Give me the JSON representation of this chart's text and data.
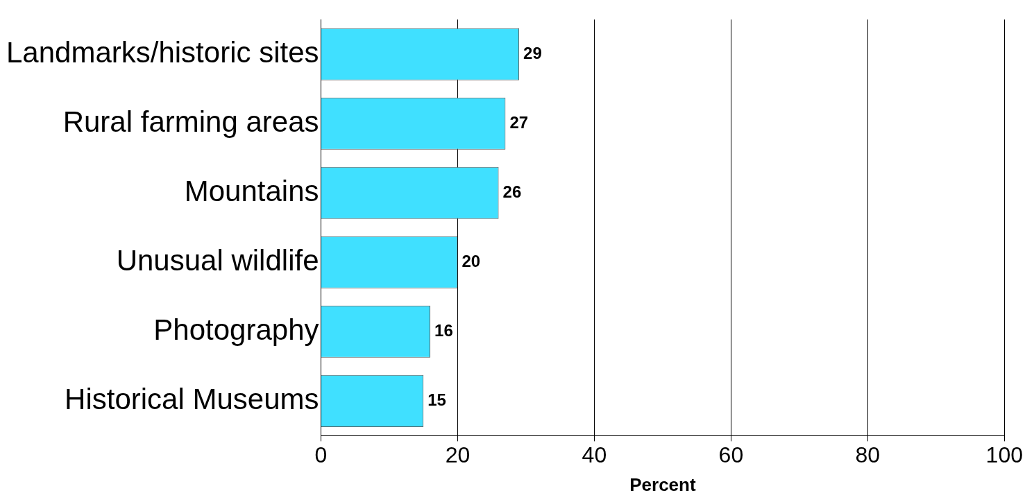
{
  "chart_data": {
    "type": "bar",
    "orientation": "horizontal",
    "xlabel": "Percent",
    "categories": [
      "Landmarks/historic sites",
      "Rural farming areas",
      "Mountains",
      "Unusual wildlife",
      "Photography",
      "Historical Museums"
    ],
    "values": [
      29,
      27,
      26,
      20,
      16,
      15
    ],
    "color": "#40e0ff",
    "xlim": [
      0,
      100
    ],
    "xticks": [
      0,
      20,
      40,
      60,
      80,
      100
    ],
    "grid": "x",
    "data_labels": true,
    "legend": false
  }
}
